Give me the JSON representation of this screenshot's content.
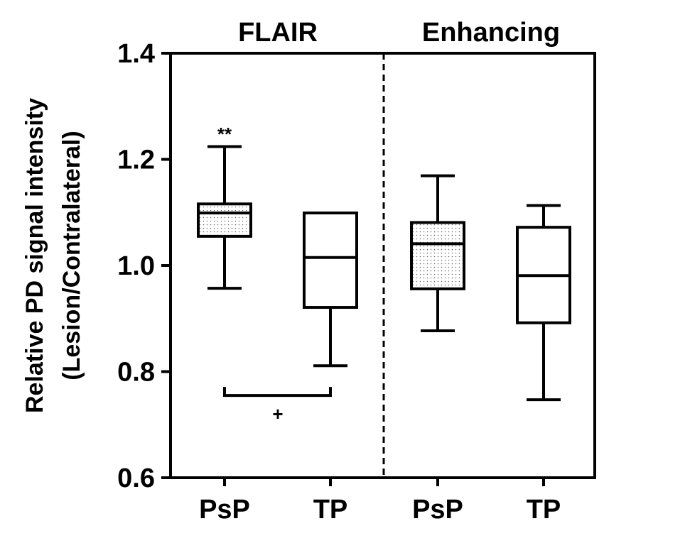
{
  "chart_data": {
    "type": "boxplot",
    "ylabel_line1": "Relative PD signal intensity",
    "ylabel_line2": "(Lesion/Contralateral)",
    "ylim": [
      0.6,
      1.4
    ],
    "yticks": [
      "0.6",
      "0.8",
      "1.0",
      "1.2",
      "1.4"
    ],
    "groups": [
      {
        "label": "FLAIR",
        "categories": [
          "PsP",
          "TP"
        ]
      },
      {
        "label": "Enhancing",
        "categories": [
          "PsP",
          "TP"
        ]
      }
    ],
    "boxes": [
      {
        "group": "FLAIR",
        "category": "PsP",
        "min": 0.957,
        "q1": 1.055,
        "median": 1.099,
        "q3": 1.116,
        "max": 1.224,
        "fill": "dotted"
      },
      {
        "group": "FLAIR",
        "category": "TP",
        "min": 0.811,
        "q1": 0.921,
        "median": 1.015,
        "q3": 1.099,
        "max": 1.099,
        "fill": "none"
      },
      {
        "group": "Enhancing",
        "category": "PsP",
        "min": 0.877,
        "q1": 0.956,
        "median": 1.041,
        "q3": 1.081,
        "max": 1.169,
        "fill": "dotted"
      },
      {
        "group": "Enhancing",
        "category": "TP",
        "min": 0.747,
        "q1": 0.892,
        "median": 0.981,
        "q3": 1.072,
        "max": 1.113,
        "fill": "none"
      }
    ],
    "annotations": {
      "significance_star": "**",
      "bracket_symbol": "+",
      "bracket_y": 0.755
    },
    "grid": false,
    "legend": "none"
  }
}
